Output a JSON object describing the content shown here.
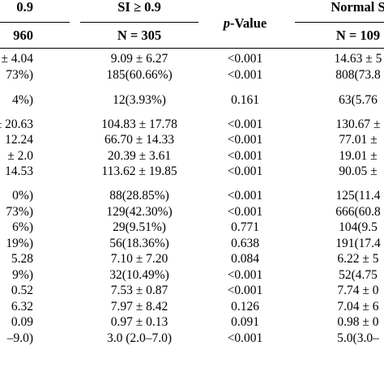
{
  "header": {
    "col1_top": "0.9",
    "col2_top": "SI ≥ 0.9",
    "pvalue_p": "p",
    "pvalue_rest": "-Value",
    "col4_top": "Normal S",
    "col1_n": "960",
    "col2_n": "N = 305",
    "col4_n": "N = 109"
  },
  "rows": [
    {
      "c1": "± 4.04",
      "c2": "9.09 ± 6.27",
      "c3": "<0.001",
      "c4": "14.63 ± 5"
    },
    {
      "c1": "73%)",
      "c2": "185(60.66%)",
      "c3": "<0.001",
      "c4": "808(73.8"
    },
    {
      "c1": "4%)",
      "c2": "12(3.93%)",
      "c3": "0.161",
      "c4": "63(5.76"
    },
    {
      "c1": "± 20.63",
      "c2": "104.83 ± 17.78",
      "c3": "<0.001",
      "c4": "130.67 ±"
    },
    {
      "c1": "12.24",
      "c2": "66.70 ± 14.33",
      "c3": "<0.001",
      "c4": "77.01 ±"
    },
    {
      "c1": "± 2.0",
      "c2": "20.39 ± 3.61",
      "c3": "<0.001",
      "c4": "19.01 ±"
    },
    {
      "c1": "14.53",
      "c2": "113.62 ± 19.85",
      "c3": "<0.001",
      "c4": "90.05 ±"
    },
    {
      "c1": "0%)",
      "c2": "88(28.85%)",
      "c3": "<0.001",
      "c4": "125(11.4"
    },
    {
      "c1": "73%)",
      "c2": "129(42.30%)",
      "c3": "<0.001",
      "c4": "666(60.8"
    },
    {
      "c1": "6%)",
      "c2": "29(9.51%)",
      "c3": "0.771",
      "c4": "104(9.5"
    },
    {
      "c1": "19%)",
      "c2": "56(18.36%)",
      "c3": "0.638",
      "c4": "191(17.4"
    },
    {
      "c1": "5.28",
      "c2": "7.10 ± 7.20",
      "c3": "0.084",
      "c4": "6.22 ± 5"
    },
    {
      "c1": "9%)",
      "c2": "32(10.49%)",
      "c3": "<0.001",
      "c4": "52(4.75"
    },
    {
      "c1": "0.52",
      "c2": "7.53 ± 0.87",
      "c3": "<0.001",
      "c4": "7.74 ± 0"
    },
    {
      "c1": "6.32",
      "c2": "7.97 ± 8.42",
      "c3": "0.126",
      "c4": "7.04 ± 6"
    },
    {
      "c1": "0.09",
      "c2": "0.97 ± 0.13",
      "c3": "0.091",
      "c4": "0.98 ± 0"
    },
    {
      "c1": "–9.0)",
      "c2": "3.0 (2.0–7.0)",
      "c3": "<0.001",
      "c4": "5.0(3.0–"
    }
  ]
}
